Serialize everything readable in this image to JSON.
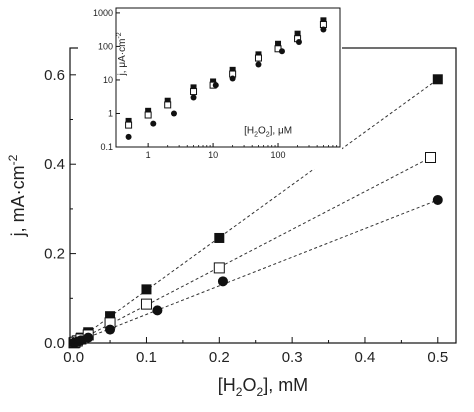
{
  "chart_data": [
    {
      "type": "scatter",
      "title": "",
      "xlabel": "[H2O2], mM",
      "ylabel": "j, mA·cm-2",
      "xlabel_parts": {
        "pre": "[H",
        "sub1": "2",
        "mid": "O",
        "sub2": "2",
        "post": "], mM"
      },
      "ylabel_parts": {
        "pre": "j, mA·cm",
        "sup": "-2"
      },
      "xlim": [
        -0.005,
        0.525
      ],
      "ylim": [
        0,
        0.66
      ],
      "xticks": [
        0.0,
        0.1,
        0.2,
        0.3,
        0.4,
        0.5
      ],
      "xtick_labels": [
        "0.0",
        "0.1",
        "0.2",
        "0.3",
        "0.4",
        "0.5"
      ],
      "yticks": [
        0.0,
        0.2,
        0.4,
        0.6
      ],
      "ytick_labels": [
        "0.0",
        "0.2",
        "0.4",
        "0.6"
      ],
      "grid": false,
      "legend": "none",
      "series": [
        {
          "marker": "filled-square",
          "color": "#111111",
          "x": [
            0.0005,
            0.001,
            0.002,
            0.005,
            0.01,
            0.02,
            0.05,
            0.1,
            0.2,
            0.5
          ],
          "y": [
            0.0006,
            0.0012,
            0.0024,
            0.006,
            0.012,
            0.024,
            0.06,
            0.12,
            0.235,
            0.59
          ],
          "fit": [
            [
              0,
              0
            ],
            [
              0.5,
              0.59
            ]
          ]
        },
        {
          "marker": "open-square",
          "color": "#111111",
          "x": [
            0.0005,
            0.001,
            0.002,
            0.005,
            0.01,
            0.02,
            0.05,
            0.1,
            0.2,
            0.49
          ],
          "y": [
            0.00045,
            0.0009,
            0.0018,
            0.0045,
            0.009,
            0.018,
            0.045,
            0.087,
            0.168,
            0.415
          ],
          "fit": [
            [
              0,
              0
            ],
            [
              0.49,
              0.415
            ]
          ]
        },
        {
          "marker": "filled-circle",
          "color": "#111111",
          "x": [
            0.0005,
            0.001,
            0.002,
            0.005,
            0.01,
            0.02,
            0.05,
            0.115,
            0.205,
            0.5
          ],
          "y": [
            0.0002,
            0.0005,
            0.001,
            0.003,
            0.006,
            0.012,
            0.03,
            0.073,
            0.138,
            0.32
          ],
          "fit": [
            [
              0,
              0
            ],
            [
              0.5,
              0.32
            ]
          ]
        }
      ]
    },
    {
      "type": "scatter",
      "title": "",
      "xlabel": "[H2O2], μM",
      "ylabel": "j, μA·cm-2",
      "xlabel_parts": {
        "pre": "[H",
        "sub1": "2",
        "mid": "O",
        "sub2": "2",
        "post": "], μM"
      },
      "ylabel_parts": {
        "pre": "j, μA·cm",
        "sup": "-2"
      },
      "xscale": "log",
      "yscale": "log",
      "xlim": [
        0.32,
        900
      ],
      "ylim": [
        0.1,
        1400
      ],
      "xticks": [
        1,
        10,
        100
      ],
      "xtick_labels": [
        "1",
        "10",
        "100"
      ],
      "yticks": [
        0.1,
        1,
        10,
        100,
        1000
      ],
      "ytick_labels": [
        "0.1",
        "1",
        "10",
        "100",
        "1000"
      ],
      "grid": false,
      "legend": "none",
      "series": [
        {
          "marker": "filled-square",
          "color": "#111111",
          "x": [
            0.5,
            1,
            2,
            5,
            10,
            20,
            50,
            100,
            200,
            500
          ],
          "y": [
            0.6,
            1.2,
            2.4,
            6,
            9,
            20,
            58,
            120,
            240,
            600
          ]
        },
        {
          "marker": "open-square",
          "color": "#111111",
          "x": [
            0.5,
            1,
            2,
            5,
            10,
            20,
            50,
            100,
            200,
            500
          ],
          "y": [
            0.45,
            0.9,
            1.8,
            4.5,
            7,
            15,
            45,
            85,
            170,
            450
          ]
        },
        {
          "marker": "filled-circle",
          "color": "#111111",
          "x": [
            0.5,
            1.2,
            2.5,
            5,
            11,
            20,
            50,
            115,
            210,
            500
          ],
          "y": [
            0.2,
            0.5,
            1,
            3,
            7,
            11,
            29,
            72,
            135,
            320
          ]
        }
      ]
    }
  ]
}
